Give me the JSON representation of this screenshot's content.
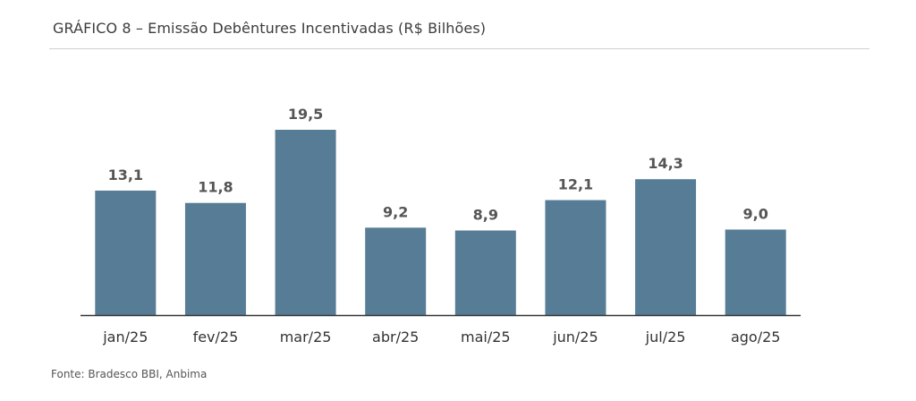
{
  "header": {
    "title": "GRÁFICO 8 – Emissão Debêntures Incentivadas (R$ Bilhões)"
  },
  "footer": {
    "source": "Fonte: Bradesco BBI, Anbima"
  },
  "colors": {
    "bar": "#577d96",
    "axis": "#333333"
  },
  "chart_data": {
    "type": "bar",
    "title": "GRÁFICO 8 – Emissão Debêntures Incentivadas (R$ Bilhões)",
    "categories": [
      "jan/25",
      "fev/25",
      "mar/25",
      "abr/25",
      "mai/25",
      "jun/25",
      "jul/25",
      "ago/25"
    ],
    "values": [
      13.1,
      11.8,
      19.5,
      9.2,
      8.9,
      12.1,
      14.3,
      9.0
    ],
    "value_labels": [
      "13,1",
      "11,8",
      "19,5",
      "9,2",
      "8,9",
      "12,1",
      "14,3",
      "9,0"
    ],
    "xlabel": "",
    "ylabel": "",
    "ylim": [
      0,
      19.5
    ],
    "grid": false,
    "legend": "none"
  }
}
